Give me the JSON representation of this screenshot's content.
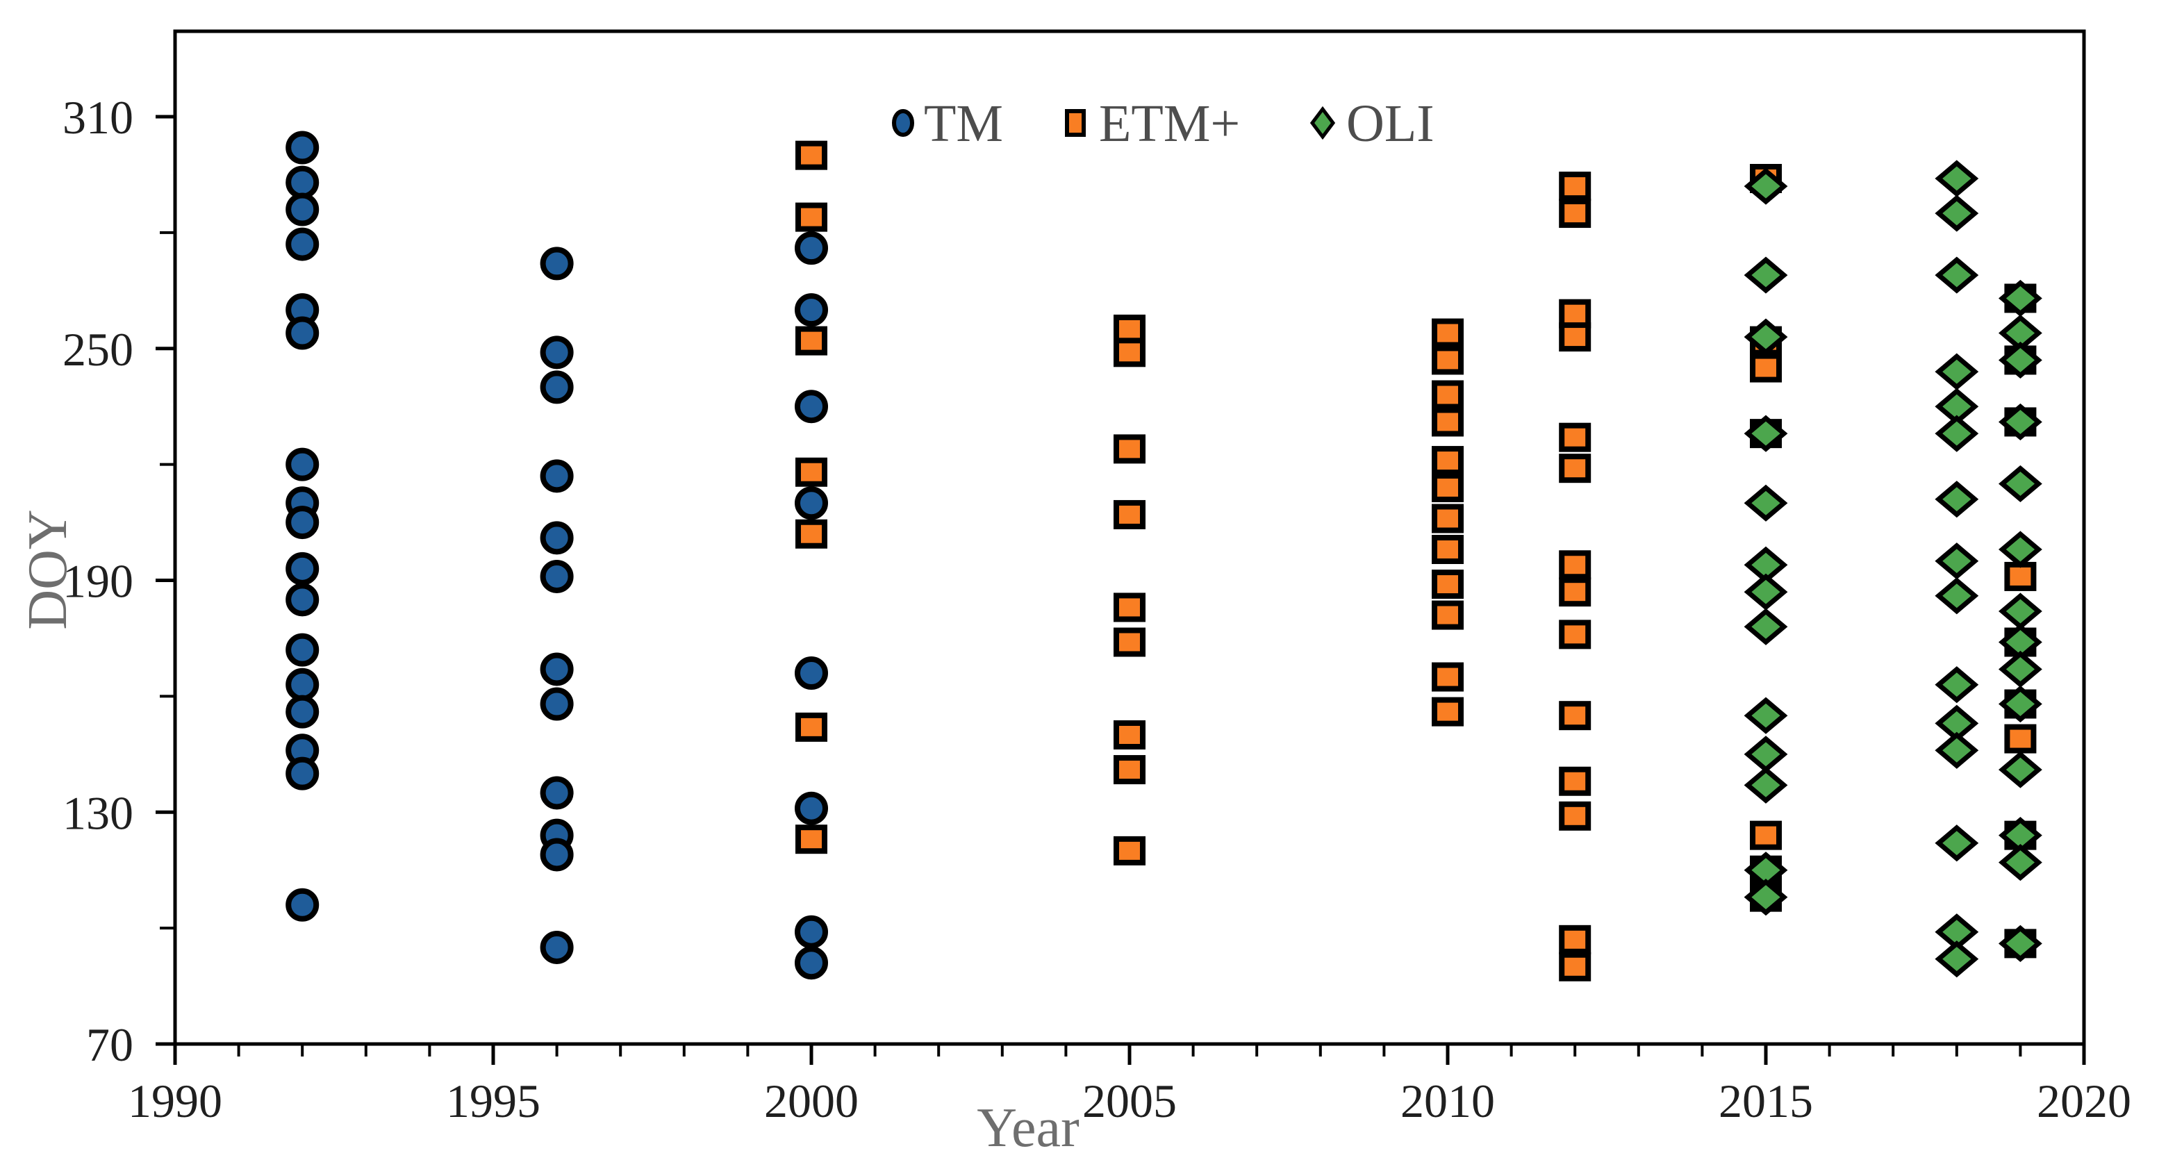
{
  "chart_data": {
    "type": "scatter",
    "title": "",
    "xlabel": "Year",
    "ylabel": "DOY",
    "x_ticks": [
      "1990",
      "1995",
      "2000",
      "2005",
      "2010",
      "2015",
      "2020"
    ],
    "x_tick_values": [
      1990,
      1995,
      2000,
      2005,
      2010,
      2015,
      2020
    ],
    "y_ticks": [
      "70",
      "130",
      "190",
      "250",
      "310"
    ],
    "y_tick_values": [
      70,
      130,
      190,
      250,
      310
    ],
    "y_minor_tick_values": [
      100,
      160,
      220,
      280
    ],
    "xlim": [
      1990,
      2020
    ],
    "ylim": [
      70,
      332
    ],
    "grid": false,
    "legend_position": "top-center-inside",
    "colors": {
      "tm_fill": "#1F5C99",
      "etm_fill": "#F97E23",
      "oli_fill": "#4CA64D",
      "marker_outline": "#000000",
      "axis_line": "#000000",
      "tick_label": "#1f1f1f",
      "axis_title": "#6e6e6e",
      "legend_text": "#4d4d4d"
    },
    "series": [
      {
        "name": "TM",
        "marker": "circle",
        "color": "#1F5C99",
        "groups": [
          {
            "x": 1992,
            "doys": [
              302,
              293,
              286,
              277,
              260,
              254,
              220,
              210,
              205,
              193,
              185,
              172,
              163,
              156,
              146,
              140,
              106
            ]
          },
          {
            "x": 1996,
            "doys": [
              272,
              249,
              240,
              217,
              201,
              191,
              167,
              158,
              135,
              124,
              119,
              95
            ]
          },
          {
            "x": 2000,
            "doys": [
              276,
              260,
              235,
              210,
              166,
              131,
              99,
              91
            ]
          }
        ]
      },
      {
        "name": "ETM+",
        "marker": "square",
        "color": "#F97E23",
        "groups": [
          {
            "x": 2000,
            "doys": [
              300,
              284,
              252,
              218,
              202,
              152,
              123
            ]
          },
          {
            "x": 2005,
            "doys": [
              255,
              249,
              224,
              207,
              183,
              174,
              150,
              141,
              120
            ]
          },
          {
            "x": 2010,
            "doys": [
              254,
              247,
              238,
              231,
              221,
              214,
              206,
              198,
              189,
              181,
              165,
              156
            ]
          },
          {
            "x": 2012,
            "doys": [
              292,
              285,
              259,
              253,
              227,
              219,
              194,
              187,
              176,
              155,
              138,
              129,
              97,
              90
            ]
          },
          {
            "x": 2015,
            "doys": [
              294,
              252,
              245,
              228,
              124,
              115,
              108
            ]
          },
          {
            "x": 2019,
            "doys": [
              263,
              247,
              231,
              191,
              174,
              158,
              149,
              124,
              96
            ]
          }
        ]
      },
      {
        "name": "OLI",
        "marker": "diamond",
        "color": "#4CA64D",
        "groups": [
          {
            "x": 2015,
            "doys": [
              292,
              269,
              253,
              228,
              210,
              194,
              187,
              178,
              155,
              145,
              137,
              115,
              108
            ]
          },
          {
            "x": 2018,
            "doys": [
              294,
              285,
              269,
              244,
              235,
              228,
              211,
              195,
              186,
              163,
              153,
              146,
              122,
              99,
              92
            ]
          },
          {
            "x": 2019,
            "doys": [
              263,
              254,
              247,
              231,
              215,
              198,
              182,
              174,
              167,
              158,
              141,
              124,
              117,
              96
            ]
          }
        ]
      }
    ]
  },
  "legend": {
    "items": [
      {
        "label": "TM",
        "icon": "circle-marker-icon"
      },
      {
        "label": "ETM+",
        "icon": "square-marker-icon"
      },
      {
        "label": "OLI",
        "icon": "diamond-marker-icon"
      }
    ]
  }
}
